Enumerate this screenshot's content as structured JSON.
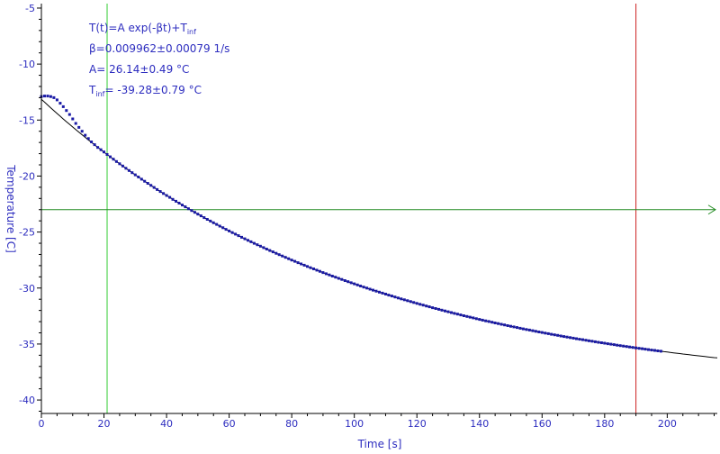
{
  "chart_data": {
    "type": "scatter",
    "xlabel": "Time [s]",
    "ylabel": "Temperature [C]",
    "xlim": [
      0,
      216
    ],
    "ylim": [
      -41.2,
      -4.6
    ],
    "xticks": [
      0,
      20,
      40,
      60,
      80,
      100,
      120,
      140,
      160,
      180,
      200
    ],
    "yticks": [
      -5,
      -10,
      -15,
      -20,
      -25,
      -30,
      -35,
      -40
    ],
    "grid": false,
    "legend": "none",
    "annotations": {
      "formula": {
        "main": "T(t)=A exp(-βt)+T",
        "sub": "inf"
      },
      "beta": "β=0.009962±0.00079 1/s",
      "amplitude": "A= 26.14±0.49 °C",
      "tinf": {
        "prefix": "T",
        "sub": "inf",
        "rest": "= -39.28±0.79 °C"
      }
    },
    "fit": {
      "A": 26.14,
      "beta": 0.009962,
      "T_inf": -39.28
    },
    "early_points": [
      {
        "x": 0,
        "y": -12.9
      },
      {
        "x": 1,
        "y": -12.85
      },
      {
        "x": 2,
        "y": -12.85
      },
      {
        "x": 3,
        "y": -12.9
      },
      {
        "x": 4,
        "y": -13.0
      },
      {
        "x": 5,
        "y": -13.2
      },
      {
        "x": 6,
        "y": -13.5
      },
      {
        "x": 7,
        "y": -13.8
      },
      {
        "x": 8,
        "y": -14.15
      },
      {
        "x": 9,
        "y": -14.5
      },
      {
        "x": 10,
        "y": -14.9
      },
      {
        "x": 11,
        "y": -15.3
      },
      {
        "x": 12,
        "y": -15.65
      },
      {
        "x": 13,
        "y": -16.0
      },
      {
        "x": 14,
        "y": -16.35
      },
      {
        "x": 15,
        "y": -16.65
      },
      {
        "x": 16,
        "y": -16.95
      },
      {
        "x": 17,
        "y": -17.2
      },
      {
        "x": 18,
        "y": -17.45
      },
      {
        "x": 19,
        "y": -17.65
      },
      {
        "x": 20,
        "y": -17.85
      }
    ],
    "points_follow_fit_from": 21,
    "points_until": 198,
    "points_step": 1,
    "fit_curve_range": [
      0,
      216
    ],
    "cursors": {
      "vertical_green_x": 21,
      "vertical_red_x": 190,
      "horizontal_green_y": -23
    },
    "colors": {
      "points": "#1a1aa6",
      "fit": "#000000",
      "vertical_green": "#33cc33",
      "vertical_red": "#cc2222",
      "horizontal_green": "#228b22",
      "axis": "#000000",
      "text": "#2d2dbf"
    }
  }
}
